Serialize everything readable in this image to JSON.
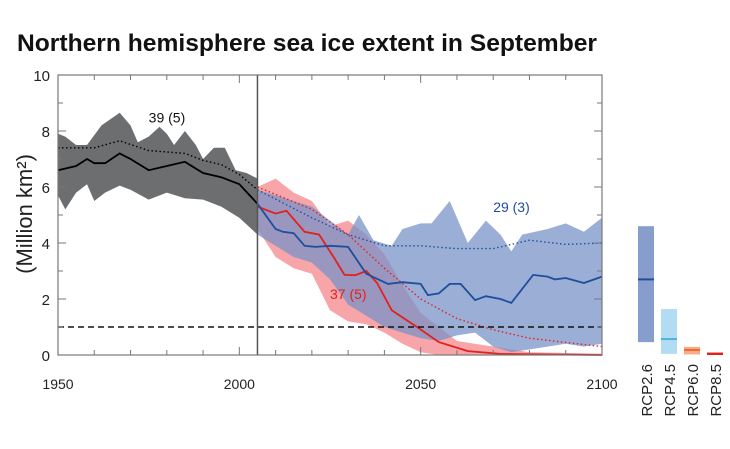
{
  "chart_data": {
    "type": "area",
    "title": "Northern hemisphere sea ice extent in September",
    "xlabel": "",
    "ylabel": "(Million km²)",
    "xlim": [
      1950,
      2100
    ],
    "ylim": [
      0,
      10
    ],
    "xticks": [
      "1950",
      "2000",
      "2050",
      "2100"
    ],
    "yticks": [
      "0",
      "2",
      "4",
      "6",
      "8",
      "10"
    ],
    "grid": false,
    "reference_line": {
      "y": 1,
      "style": "dashed"
    },
    "divider_year": 2005,
    "colors": {
      "historical_band": "#6d6e70",
      "historical_line": "#000000",
      "rcp26_band": "#7a93c8",
      "rcp26_line": "#1f4e9c",
      "rcp85_band": "#f2747b",
      "rcp85_line": "#e2211c",
      "rcp45_bar": "#a8d8f0",
      "rcp45_line": "#4fb3e0",
      "rcp60_bar": "#f7a37a",
      "rcp60_line": "#ef6a2c"
    },
    "annotations": [
      {
        "text": "39 (5)",
        "x": 1975,
        "y": 8.3,
        "series": "historical"
      },
      {
        "text": "29 (3)",
        "x": 2070,
        "y": 5.1,
        "series": "rcp26"
      },
      {
        "text": "37 (5)",
        "x": 2025,
        "y": 2.0,
        "series": "rcp85"
      }
    ],
    "series": [
      {
        "id": "historical",
        "mean": [
          [
            1950,
            6.6
          ],
          [
            1955,
            6.75
          ],
          [
            1958,
            7.0
          ],
          [
            1960,
            6.85
          ],
          [
            1963,
            6.85
          ],
          [
            1967,
            7.2
          ],
          [
            1970,
            7.0
          ],
          [
            1975,
            6.6
          ],
          [
            1980,
            6.75
          ],
          [
            1985,
            6.9
          ],
          [
            1990,
            6.5
          ],
          [
            1995,
            6.35
          ],
          [
            2000,
            6.1
          ],
          [
            2005,
            5.4
          ]
        ],
        "dotted": [
          [
            1950,
            7.4
          ],
          [
            1960,
            7.4
          ],
          [
            1967,
            7.65
          ],
          [
            1975,
            7.3
          ],
          [
            1985,
            7.2
          ],
          [
            1990,
            6.95
          ],
          [
            1995,
            6.8
          ],
          [
            2000,
            6.45
          ],
          [
            2005,
            5.9
          ]
        ],
        "upper": [
          [
            1950,
            7.9
          ],
          [
            1952,
            7.8
          ],
          [
            1955,
            7.5
          ],
          [
            1958,
            7.5
          ],
          [
            1962,
            8.2
          ],
          [
            1967,
            8.65
          ],
          [
            1970,
            8.2
          ],
          [
            1972,
            7.6
          ],
          [
            1975,
            7.8
          ],
          [
            1978,
            8.15
          ],
          [
            1980,
            7.9
          ],
          [
            1982,
            7.5
          ],
          [
            1985,
            8.0
          ],
          [
            1988,
            7.5
          ],
          [
            1990,
            7.0
          ],
          [
            1993,
            7.4
          ],
          [
            1996,
            7.4
          ],
          [
            1999,
            6.6
          ],
          [
            2002,
            6.5
          ],
          [
            2005,
            6.3
          ]
        ],
        "lower": [
          [
            1950,
            5.7
          ],
          [
            1952,
            5.2
          ],
          [
            1955,
            5.8
          ],
          [
            1958,
            6.1
          ],
          [
            1960,
            5.5
          ],
          [
            1963,
            5.8
          ],
          [
            1967,
            6.05
          ],
          [
            1970,
            5.9
          ],
          [
            1975,
            5.55
          ],
          [
            1980,
            5.8
          ],
          [
            1985,
            5.6
          ],
          [
            1990,
            5.55
          ],
          [
            1995,
            5.3
          ],
          [
            2000,
            4.9
          ],
          [
            2005,
            4.3
          ]
        ]
      },
      {
        "id": "rcp26",
        "mean": [
          [
            2005,
            5.4
          ],
          [
            2010,
            4.5
          ],
          [
            2012,
            4.4
          ],
          [
            2015,
            4.35
          ],
          [
            2018,
            3.9
          ],
          [
            2021,
            3.86
          ],
          [
            2025,
            3.9
          ],
          [
            2030,
            3.86
          ],
          [
            2035,
            2.9
          ],
          [
            2041,
            2.54
          ],
          [
            2045,
            2.6
          ],
          [
            2050,
            2.54
          ],
          [
            2052,
            2.14
          ],
          [
            2055,
            2.2
          ],
          [
            2058,
            2.54
          ],
          [
            2061,
            2.54
          ],
          [
            2065,
            1.96
          ],
          [
            2068,
            2.1
          ],
          [
            2072,
            2.0
          ],
          [
            2075,
            1.86
          ],
          [
            2081,
            2.86
          ],
          [
            2085,
            2.8
          ],
          [
            2087,
            2.7
          ],
          [
            2090,
            2.75
          ],
          [
            2095,
            2.57
          ],
          [
            2100,
            2.8
          ]
        ],
        "dotted": [
          [
            2005,
            5.9
          ],
          [
            2020,
            4.9
          ],
          [
            2030,
            4.3
          ],
          [
            2040,
            3.9
          ],
          [
            2050,
            3.9
          ],
          [
            2060,
            3.8
          ],
          [
            2070,
            3.8
          ],
          [
            2080,
            4.1
          ],
          [
            2090,
            3.95
          ],
          [
            2100,
            4.0
          ]
        ],
        "upper": [
          [
            2005,
            5.9
          ],
          [
            2015,
            5.5
          ],
          [
            2020,
            5.3
          ],
          [
            2025,
            4.8
          ],
          [
            2030,
            4.3
          ],
          [
            2033,
            5.0
          ],
          [
            2037,
            4.1
          ],
          [
            2042,
            3.9
          ],
          [
            2045,
            4.5
          ],
          [
            2050,
            4.7
          ],
          [
            2053,
            4.7
          ],
          [
            2058,
            5.5
          ],
          [
            2063,
            4.0
          ],
          [
            2068,
            4.8
          ],
          [
            2072,
            4.3
          ],
          [
            2075,
            3.7
          ],
          [
            2078,
            4.3
          ],
          [
            2085,
            4.5
          ],
          [
            2090,
            4.7
          ],
          [
            2095,
            4.4
          ],
          [
            2100,
            4.9
          ]
        ],
        "lower": [
          [
            2005,
            4.3
          ],
          [
            2015,
            3.5
          ],
          [
            2020,
            3.3
          ],
          [
            2025,
            2.7
          ],
          [
            2030,
            1.8
          ],
          [
            2035,
            1.4
          ],
          [
            2040,
            1.0
          ],
          [
            2050,
            0.6
          ],
          [
            2055,
            0.5
          ],
          [
            2060,
            0.7
          ],
          [
            2065,
            0.8
          ],
          [
            2070,
            0.3
          ],
          [
            2075,
            0.1
          ],
          [
            2080,
            0.2
          ],
          [
            2085,
            0.3
          ],
          [
            2090,
            0.4
          ],
          [
            2095,
            0.3
          ],
          [
            2100,
            0.4
          ]
        ]
      },
      {
        "id": "rcp85",
        "mean": [
          [
            2005,
            5.3
          ],
          [
            2010,
            5.05
          ],
          [
            2013,
            5.15
          ],
          [
            2018,
            4.4
          ],
          [
            2022,
            4.3
          ],
          [
            2026,
            3.5
          ],
          [
            2029,
            2.86
          ],
          [
            2032,
            2.85
          ],
          [
            2035,
            3.0
          ],
          [
            2038,
            2.57
          ],
          [
            2042,
            1.6
          ],
          [
            2049,
            1.0
          ],
          [
            2055,
            0.46
          ],
          [
            2063,
            0.14
          ],
          [
            2072,
            0.04
          ],
          [
            2100,
            0.0
          ]
        ],
        "dotted": [
          [
            2005,
            6.0
          ],
          [
            2020,
            5.2
          ],
          [
            2030,
            4.3
          ],
          [
            2040,
            3.1
          ],
          [
            2050,
            2.0
          ],
          [
            2060,
            1.3
          ],
          [
            2070,
            0.9
          ],
          [
            2080,
            0.6
          ],
          [
            2090,
            0.45
          ],
          [
            2100,
            0.3
          ]
        ],
        "upper": [
          [
            2005,
            6.0
          ],
          [
            2010,
            6.3
          ],
          [
            2015,
            5.8
          ],
          [
            2020,
            5.5
          ],
          [
            2025,
            4.6
          ],
          [
            2030,
            4.8
          ],
          [
            2035,
            4.3
          ],
          [
            2040,
            3.6
          ],
          [
            2045,
            2.5
          ],
          [
            2050,
            1.5
          ],
          [
            2055,
            1.0
          ],
          [
            2060,
            0.5
          ],
          [
            2070,
            0.3
          ],
          [
            2080,
            0.1
          ],
          [
            2100,
            0.05
          ]
        ],
        "lower": [
          [
            2005,
            4.5
          ],
          [
            2010,
            3.5
          ],
          [
            2015,
            3.1
          ],
          [
            2020,
            2.9
          ],
          [
            2025,
            1.6
          ],
          [
            2030,
            1.2
          ],
          [
            2035,
            1.1
          ],
          [
            2040,
            0.8
          ],
          [
            2045,
            0.4
          ],
          [
            2050,
            0.1
          ],
          [
            2055,
            0.0
          ],
          [
            2100,
            0.0
          ]
        ]
      }
    ],
    "side_bars": [
      {
        "label": "RCP2.6",
        "low": 0.46,
        "high": 4.6,
        "median": 2.7,
        "color": "#7a93c8",
        "line": "#1f4e9c"
      },
      {
        "label": "RCP4.5",
        "low": 0.04,
        "high": 1.64,
        "median": 0.57,
        "color": "#a8d8f0",
        "line": "#4fb3e0"
      },
      {
        "label": "RCP6.0",
        "low": 0.02,
        "high": 0.29,
        "median": 0.18,
        "color": "#f7a37a",
        "line": "#ef6a2c"
      },
      {
        "label": "RCP8.5",
        "low": 0.0,
        "high": 0.08,
        "median": 0.05,
        "color": "#e2211c",
        "line": "#e2211c"
      }
    ]
  }
}
